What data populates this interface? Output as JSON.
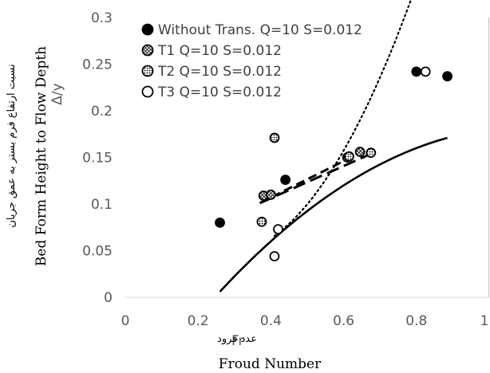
{
  "chart_data": {
    "type": "scatter",
    "xlim": [
      0,
      1
    ],
    "ylim": [
      0,
      0.3
    ],
    "x_ticks": [
      "0",
      "0.2",
      "0.4",
      "0.6",
      "0.8",
      "1"
    ],
    "y_ticks": [
      "0",
      "0.05",
      "0.1",
      "0.15",
      "0.2",
      "0.25",
      "0.3"
    ],
    "xlabel_short": "Fr",
    "xlabel_arabic": "عدد فرود",
    "xlabel": "Froud Number",
    "ylabel_short": "Δ/y",
    "ylabel": "Bed Form Height to Flow Depth",
    "ylabel_arabic": "نسبت ارتفاع فرم بستر به عمق جریان",
    "grid": false,
    "legend_position": "top-left",
    "series": [
      {
        "name": "Without Trans. Q=10 S=0.012",
        "marker": "filled",
        "points": [
          [
            0.26,
            0.08
          ],
          [
            0.44,
            0.126
          ],
          [
            0.8,
            0.242
          ],
          [
            0.885,
            0.237
          ]
        ],
        "trend": {
          "style": "solid",
          "x0": 0.26,
          "x1": 0.885,
          "coeffs": [
            -0.12,
            0.55,
            -0.25
          ]
        }
      },
      {
        "name": "T1 Q=10 S=0.012",
        "marker": "crosshatch",
        "points": [
          [
            0.38,
            0.109
          ],
          [
            0.4,
            0.11
          ],
          [
            0.61,
            0.15
          ],
          [
            0.645,
            0.156
          ]
        ],
        "trend": {
          "style": "dashed",
          "x0": 0.37,
          "x1": 0.655,
          "coeffs": [
            0.029,
            0.195,
            0.0
          ]
        }
      },
      {
        "name": "T2 Q=10 S=0.012",
        "marker": "dotted",
        "points": [
          [
            0.375,
            0.081
          ],
          [
            0.41,
            0.171
          ],
          [
            0.615,
            0.151
          ],
          [
            0.675,
            0.155
          ]
        ],
        "trend": {
          "style": "longdash",
          "x0": 0.37,
          "x1": 0.68,
          "coeffs": [
            0.037,
            0.173,
            0.0
          ]
        }
      },
      {
        "name": "T3 Q=10 S=0.012",
        "marker": "open",
        "points": [
          [
            0.41,
            0.044
          ],
          [
            0.42,
            0.073
          ],
          [
            0.825,
            0.242
          ]
        ],
        "trend": {
          "style": "dotted",
          "x0": 0.41,
          "x1": 0.825,
          "coeffs": [
            0.126,
            -0.576,
            1.047
          ]
        }
      }
    ]
  }
}
